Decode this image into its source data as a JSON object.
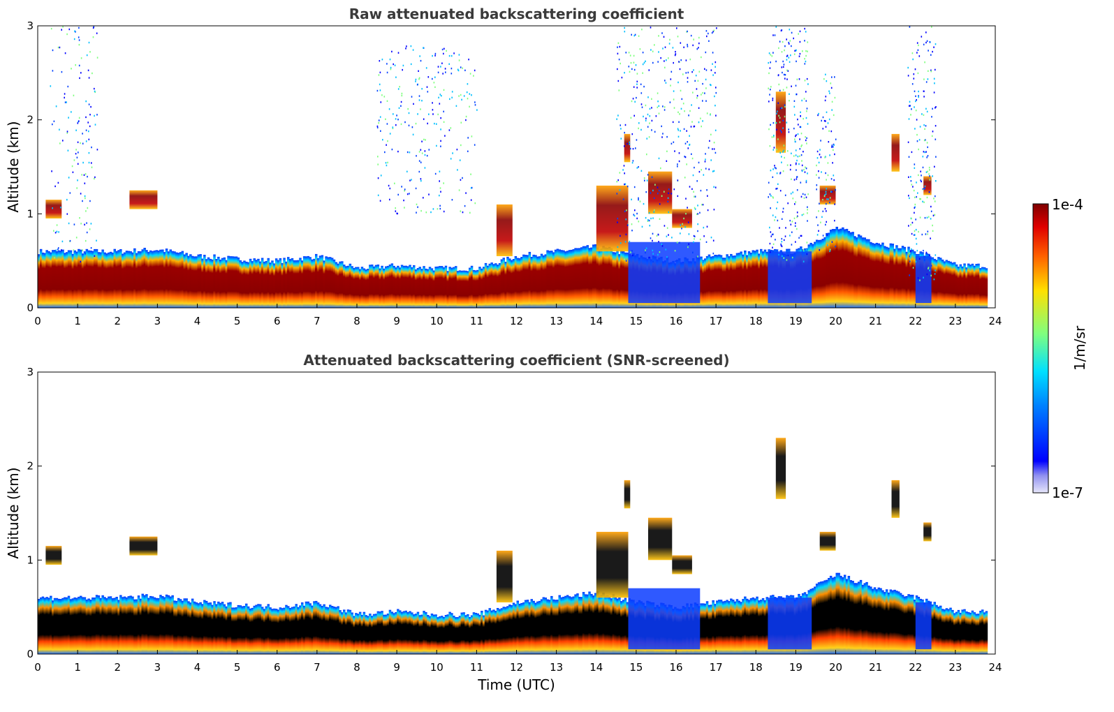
{
  "chart_data": [
    {
      "type": "heatmap",
      "title": "Raw attenuated backscattering coefficient",
      "xlabel": "",
      "ylabel": "Altitude (km)",
      "xlim": [
        0,
        24
      ],
      "ylim": [
        0,
        3
      ],
      "x_ticks": [
        "0",
        "1",
        "2",
        "3",
        "4",
        "5",
        "6",
        "7",
        "8",
        "9",
        "10",
        "11",
        "12",
        "13",
        "14",
        "15",
        "16",
        "17",
        "18",
        "19",
        "20",
        "21",
        "22",
        "23",
        "24"
      ],
      "y_ticks": [
        "0",
        "1",
        "2",
        "3"
      ],
      "boundary_layer_top_km": [
        [
          0,
          0.6
        ],
        [
          1,
          0.6
        ],
        [
          2,
          0.6
        ],
        [
          3,
          0.62
        ],
        [
          4,
          0.55
        ],
        [
          5,
          0.52
        ],
        [
          6,
          0.5
        ],
        [
          7,
          0.55
        ],
        [
          8,
          0.42
        ],
        [
          9,
          0.45
        ],
        [
          10,
          0.42
        ],
        [
          11,
          0.42
        ],
        [
          12,
          0.55
        ],
        [
          13,
          0.6
        ],
        [
          14,
          0.65
        ],
        [
          15,
          0.55
        ],
        [
          16,
          0.5
        ],
        [
          17,
          0.55
        ],
        [
          18,
          0.6
        ],
        [
          19,
          0.6
        ],
        [
          20,
          0.85
        ],
        [
          21,
          0.7
        ],
        [
          22,
          0.6
        ],
        [
          23,
          0.45
        ],
        [
          24,
          0.45
        ]
      ],
      "cloud_layers": [
        {
          "t_start": 0.2,
          "t_end": 0.6,
          "base_km": 0.95,
          "top_km": 1.15
        },
        {
          "t_start": 2.3,
          "t_end": 3.0,
          "base_km": 1.05,
          "top_km": 1.25
        },
        {
          "t_start": 11.5,
          "t_end": 11.9,
          "base_km": 0.55,
          "top_km": 1.1
        },
        {
          "t_start": 14.0,
          "t_end": 14.8,
          "base_km": 0.6,
          "top_km": 1.3
        },
        {
          "t_start": 14.7,
          "t_end": 14.85,
          "base_km": 1.55,
          "top_km": 1.85
        },
        {
          "t_start": 15.3,
          "t_end": 15.9,
          "base_km": 1.0,
          "top_km": 1.45
        },
        {
          "t_start": 15.9,
          "t_end": 16.4,
          "base_km": 0.85,
          "top_km": 1.05
        },
        {
          "t_start": 18.5,
          "t_end": 18.75,
          "base_km": 1.65,
          "top_km": 2.3
        },
        {
          "t_start": 19.6,
          "t_end": 20.0,
          "base_km": 1.1,
          "top_km": 1.3
        },
        {
          "t_start": 21.4,
          "t_end": 21.6,
          "base_km": 1.45,
          "top_km": 1.85
        },
        {
          "t_start": 22.2,
          "t_end": 22.4,
          "base_km": 1.2,
          "top_km": 1.4
        }
      ]
    },
    {
      "type": "heatmap",
      "title": "Attenuated backscattering coefficient (SNR-screened)",
      "xlabel": "Time (UTC)",
      "ylabel": "Altitude (km)",
      "xlim": [
        0,
        24
      ],
      "ylim": [
        0,
        3
      ],
      "x_ticks": [
        "0",
        "1",
        "2",
        "3",
        "4",
        "5",
        "6",
        "7",
        "8",
        "9",
        "10",
        "11",
        "12",
        "13",
        "14",
        "15",
        "16",
        "17",
        "18",
        "19",
        "20",
        "21",
        "22",
        "23",
        "24"
      ],
      "y_ticks": [
        "0",
        "1",
        "2",
        "3"
      ],
      "saturated_color": "#000000"
    }
  ],
  "colorbar": {
    "label": "1/m/sr",
    "max_label": "1e-4",
    "min_label": "1e-7",
    "scale": "log",
    "colormap": "jet"
  },
  "colors": {
    "dark_red": "#7f0000",
    "red": "#ff2000",
    "yellow": "#ffe000",
    "green": "#7fff7f",
    "cyan": "#00e0ff",
    "blue": "#0040ff",
    "deep_blue": "#0000ff",
    "lavender": "#e6e6fa"
  }
}
